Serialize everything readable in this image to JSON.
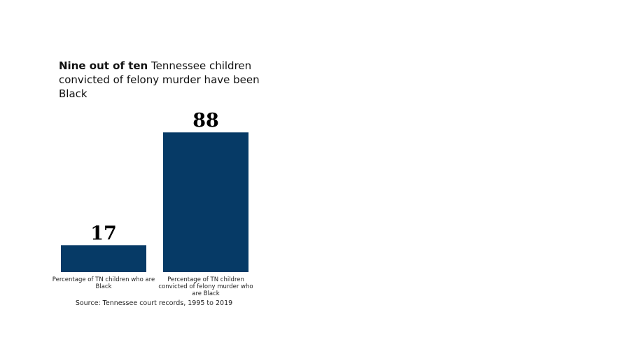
{
  "chart_data": {
    "type": "bar",
    "title_bold": "Nine out of ten",
    "title": "Tennessee children convicted of felony murder have been Black",
    "categories": [
      "Percentage of TN children who are Black",
      "Percentage of TN children convicted of felony murder who are Black"
    ],
    "values": [
      17,
      88
    ],
    "color": "#063a66",
    "ylim": [
      0,
      100
    ],
    "source": "Source: Tennessee court records, 1995 to 2019"
  }
}
